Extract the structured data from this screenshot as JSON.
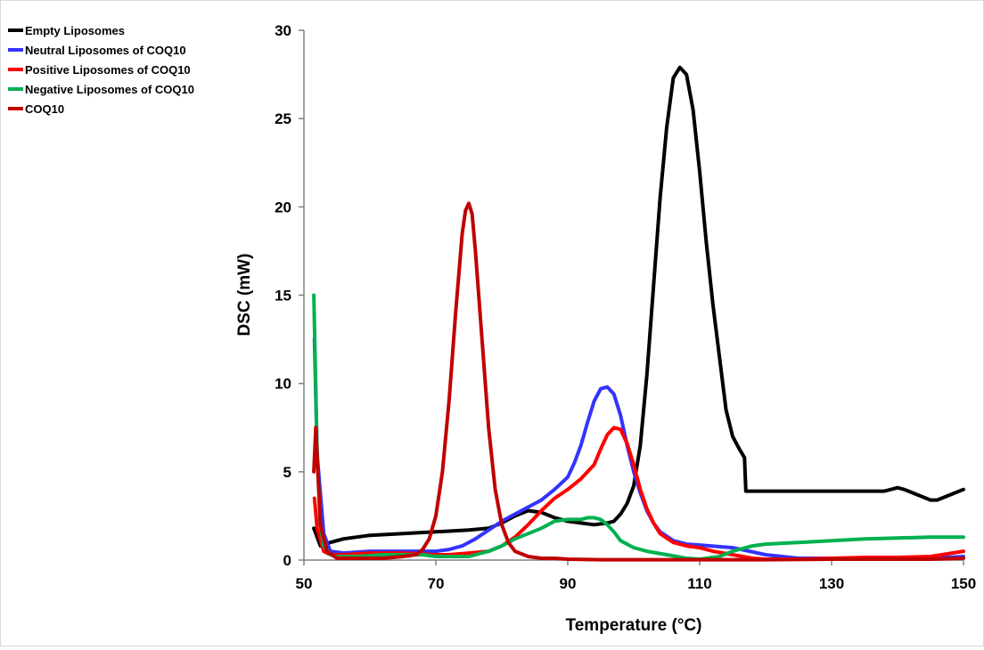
{
  "chart_data": {
    "type": "line",
    "title": "",
    "xlabel": "Temperature (°C)",
    "ylabel": "DSC (mW)",
    "xlim": [
      50,
      150
    ],
    "ylim": [
      0,
      30
    ],
    "xticks": [
      50,
      70,
      90,
      110,
      130,
      150
    ],
    "yticks": [
      0,
      5,
      10,
      15,
      20,
      25,
      30
    ],
    "grid": false,
    "legend_position": "top-left",
    "series": [
      {
        "name": "Empty Liposomes",
        "color": "#000000",
        "x": [
          51.5,
          52.5,
          54,
          56,
          60,
          65,
          70,
          75,
          78,
          80,
          82,
          84,
          86,
          88,
          90,
          92,
          94,
          96,
          97,
          98,
          99,
          100,
          101,
          102,
          103,
          104,
          105,
          106,
          107,
          108,
          109,
          110,
          111,
          112,
          113,
          114,
          115,
          116,
          116.8,
          117,
          120,
          130,
          138,
          139,
          140,
          141,
          143,
          145,
          146,
          148,
          150
        ],
        "y": [
          1.8,
          0.8,
          1.0,
          1.2,
          1.4,
          1.5,
          1.6,
          1.7,
          1.8,
          2.1,
          2.5,
          2.8,
          2.7,
          2.4,
          2.2,
          2.1,
          2.0,
          2.1,
          2.2,
          2.6,
          3.2,
          4.2,
          6.5,
          10.5,
          15.5,
          20.5,
          24.5,
          27.3,
          27.9,
          27.5,
          25.5,
          22.0,
          18.0,
          14.5,
          11.5,
          8.5,
          7.0,
          6.3,
          5.8,
          3.9,
          3.9,
          3.9,
          3.9,
          4.0,
          4.1,
          4.0,
          3.7,
          3.4,
          3.4,
          3.7,
          4.0
        ]
      },
      {
        "name": "Neutral Liposomes of COQ10",
        "color": "#3333ff",
        "x": [
          51.6,
          52,
          53,
          54,
          56,
          60,
          65,
          68,
          70,
          72,
          74,
          76,
          78,
          80,
          82,
          84,
          86,
          88,
          90,
          91,
          92,
          93,
          94,
          95,
          96,
          97,
          98,
          99,
          100,
          101,
          102,
          103,
          104,
          106,
          108,
          110,
          115,
          120,
          125,
          130,
          135,
          140,
          145,
          150
        ],
        "y": [
          12.5,
          6.0,
          1.5,
          0.5,
          0.4,
          0.5,
          0.5,
          0.5,
          0.5,
          0.6,
          0.8,
          1.2,
          1.7,
          2.2,
          2.6,
          3.0,
          3.4,
          4.0,
          4.7,
          5.5,
          6.5,
          7.8,
          9.0,
          9.7,
          9.8,
          9.4,
          8.2,
          6.5,
          5.0,
          3.8,
          2.8,
          2.1,
          1.6,
          1.1,
          0.9,
          0.85,
          0.7,
          0.3,
          0.1,
          0.1,
          0.1,
          0.1,
          0.1,
          0.2
        ]
      },
      {
        "name": "Positive Liposomes of COQ10",
        "color": "#ff0000",
        "x": [
          51.6,
          52,
          53,
          54,
          56,
          60,
          65,
          70,
          72,
          75,
          78,
          80,
          82,
          84,
          86,
          88,
          90,
          92,
          94,
          95,
          96,
          97,
          98,
          99,
          100,
          101,
          102,
          103,
          104,
          106,
          108,
          110,
          112,
          115,
          118,
          120,
          125,
          130,
          135,
          140,
          145,
          150
        ],
        "y": [
          3.5,
          1.8,
          0.5,
          0.3,
          0.3,
          0.4,
          0.4,
          0.3,
          0.3,
          0.4,
          0.5,
          0.8,
          1.3,
          2.0,
          2.8,
          3.5,
          4.0,
          4.6,
          5.4,
          6.3,
          7.1,
          7.5,
          7.4,
          6.6,
          5.4,
          4.0,
          2.9,
          2.1,
          1.5,
          1.0,
          0.8,
          0.7,
          0.5,
          0.3,
          0.1,
          0.05,
          0.05,
          0.1,
          0.15,
          0.15,
          0.2,
          0.5
        ]
      },
      {
        "name": "Negative Liposomes of COQ10",
        "color": "#00b050",
        "x": [
          51.5,
          52,
          52.5,
          53,
          54,
          55,
          58,
          62,
          65,
          68,
          70,
          72,
          75,
          78,
          80,
          82,
          84,
          86,
          88,
          90,
          92,
          93,
          94,
          95,
          96,
          97,
          98,
          100,
          102,
          105,
          108,
          110,
          113,
          115,
          118,
          120,
          125,
          130,
          135,
          140,
          145,
          150
        ],
        "y": [
          15.0,
          6.0,
          2.0,
          0.8,
          0.3,
          0.2,
          0.2,
          0.3,
          0.3,
          0.3,
          0.2,
          0.2,
          0.2,
          0.5,
          0.8,
          1.2,
          1.5,
          1.8,
          2.2,
          2.3,
          2.3,
          2.4,
          2.4,
          2.3,
          2.0,
          1.6,
          1.1,
          0.7,
          0.5,
          0.3,
          0.1,
          0.05,
          0.2,
          0.5,
          0.8,
          0.9,
          1.0,
          1.1,
          1.2,
          1.25,
          1.3,
          1.3
        ]
      },
      {
        "name": "COQ10",
        "color": "#c00000",
        "x": [
          51.5,
          51.8,
          52.5,
          53.5,
          55,
          58,
          62,
          65,
          67,
          68,
          69,
          70,
          71,
          72,
          73,
          74,
          74.5,
          75,
          75.5,
          76,
          77,
          78,
          79,
          80,
          81,
          82,
          84,
          86,
          88,
          90,
          95,
          100,
          110,
          120,
          130,
          140,
          145,
          150
        ],
        "y": [
          5.0,
          7.5,
          2.0,
          0.5,
          0.1,
          0.1,
          0.1,
          0.2,
          0.3,
          0.6,
          1.2,
          2.5,
          5.0,
          9.0,
          14.0,
          18.5,
          19.8,
          20.2,
          19.6,
          17.5,
          12.5,
          7.5,
          4.0,
          2.0,
          1.0,
          0.5,
          0.2,
          0.1,
          0.1,
          0.05,
          0.02,
          0.02,
          0.02,
          0.02,
          0.05,
          0.05,
          0.05,
          0.1
        ]
      }
    ]
  }
}
